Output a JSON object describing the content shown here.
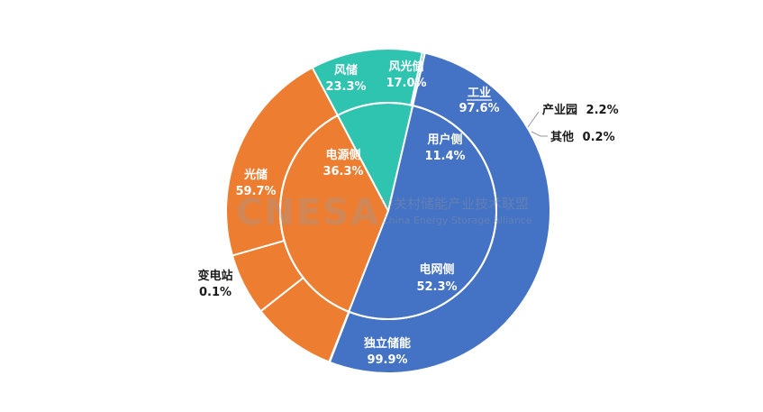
{
  "chart_data": {
    "type": "pie",
    "inner_ring": [
      {
        "label": "电源侧",
        "value": 36.3,
        "value_text": "36.3%",
        "color": "#ED7D31"
      },
      {
        "label": "用户侧",
        "value": 11.4,
        "value_text": "11.4%",
        "color": "#2EC4B0"
      },
      {
        "label": "电网侧",
        "value": 52.3,
        "value_text": "52.3%",
        "color": "#4472C4"
      }
    ],
    "outer_ring": [
      {
        "label": "风储",
        "value": 23.3,
        "value_text": "23.3%",
        "parent": "电源侧"
      },
      {
        "label": "风光储",
        "value": 17.0,
        "value_text": "17.0%",
        "parent": "电源侧"
      },
      {
        "label": "光储",
        "value": 59.7,
        "value_text": "59.7%",
        "parent": "电源侧"
      },
      {
        "label": "工业",
        "value": 97.6,
        "value_text": "97.6%",
        "parent": "用户侧"
      },
      {
        "label": "产业园",
        "value": 2.2,
        "value_text": "2.2%",
        "parent": "用户侧"
      },
      {
        "label": "其他",
        "value": 0.2,
        "value_text": "0.2%",
        "parent": "用户侧"
      },
      {
        "label": "独立储能",
        "value": 99.9,
        "value_text": "99.9%",
        "parent": "电网侧"
      },
      {
        "label": "变电站",
        "value": 0.1,
        "value_text": "0.1%",
        "parent": "电网侧"
      }
    ]
  },
  "watermark": {
    "brand": "CNESA",
    "cn": "中关村储能产业技术联盟",
    "en": "China Energy Storage Alliance"
  }
}
